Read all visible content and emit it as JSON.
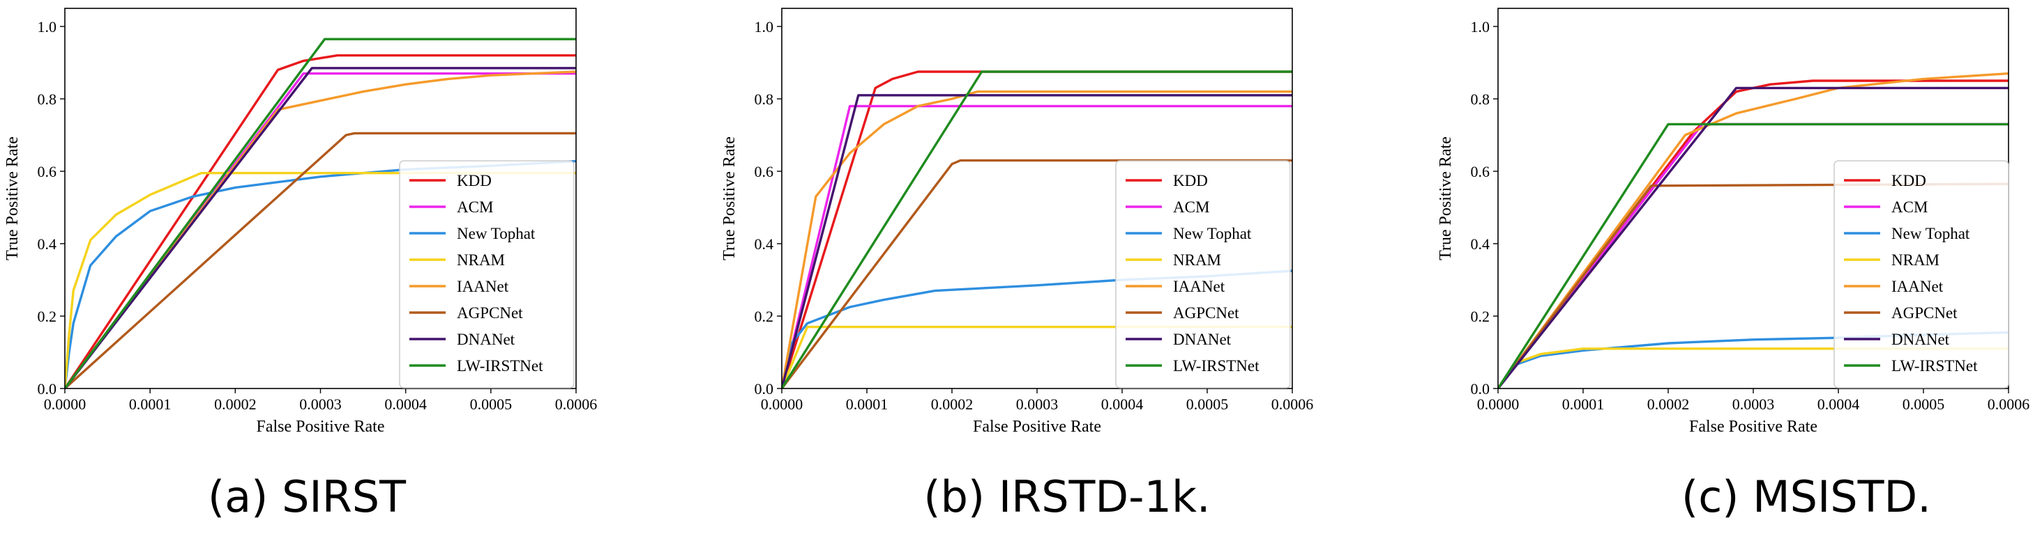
{
  "figure": {
    "colors": {
      "KDD": "#e8191c",
      "ACM": "#ec25ec",
      "New Tophat": "#2e8fe0",
      "NRAM": "#f5d31c",
      "IAANet": "#f59a2a",
      "AGPCNet": "#b25a1c",
      "DNANet": "#43146e",
      "LW-IRSTNet": "#1f8c1f"
    }
  },
  "chart_data": [
    {
      "type": "line",
      "caption": "(a) SIRST",
      "xlabel": "False Positive Rate",
      "ylabel": "True Positive Rate",
      "xlim": [
        0,
        0.0006
      ],
      "ylim": [
        0,
        1.05
      ],
      "xticks": [
        "0.0000",
        "0.0001",
        "0.0002",
        "0.0003",
        "0.0004",
        "0.0005",
        "0.0006"
      ],
      "yticks": [
        "0.0",
        "0.2",
        "0.4",
        "0.6",
        "0.8",
        "1.0"
      ],
      "legend_position": "center-right",
      "series": [
        {
          "name": "KDD",
          "points": [
            [
              0,
              0
            ],
            [
              0.00025,
              0.88
            ],
            [
              0.00028,
              0.905
            ],
            [
              0.00032,
              0.92
            ],
            [
              0.0006,
              0.92
            ]
          ]
        },
        {
          "name": "ACM",
          "points": [
            [
              0,
              0
            ],
            [
              0.00028,
              0.87
            ],
            [
              0.0006,
              0.87
            ]
          ]
        },
        {
          "name": "New Tophat",
          "points": [
            [
              0,
              0
            ],
            [
              5e-06,
              0.1
            ],
            [
              1e-05,
              0.18
            ],
            [
              3e-05,
              0.34
            ],
            [
              6e-05,
              0.42
            ],
            [
              0.0001,
              0.49
            ],
            [
              0.00015,
              0.53
            ],
            [
              0.0002,
              0.555
            ],
            [
              0.0003,
              0.585
            ],
            [
              0.0004,
              0.605
            ],
            [
              0.0005,
              0.615
            ],
            [
              0.0006,
              0.628
            ]
          ]
        },
        {
          "name": "NRAM",
          "points": [
            [
              0,
              0
            ],
            [
              5e-06,
              0.15
            ],
            [
              1e-05,
              0.27
            ],
            [
              3e-05,
              0.41
            ],
            [
              6e-05,
              0.48
            ],
            [
              0.0001,
              0.535
            ],
            [
              0.00016,
              0.595
            ],
            [
              0.0006,
              0.595
            ]
          ]
        },
        {
          "name": "IAANet",
          "points": [
            [
              0,
              0
            ],
            [
              0.00025,
              0.77
            ],
            [
              0.0003,
              0.795
            ],
            [
              0.00035,
              0.82
            ],
            [
              0.0004,
              0.84
            ],
            [
              0.00045,
              0.855
            ],
            [
              0.0005,
              0.865
            ],
            [
              0.0006,
              0.875
            ]
          ]
        },
        {
          "name": "AGPCNet",
          "points": [
            [
              0,
              0
            ],
            [
              0.00033,
              0.7
            ],
            [
              0.00034,
              0.705
            ],
            [
              0.0006,
              0.705
            ]
          ]
        },
        {
          "name": "DNANet",
          "points": [
            [
              0,
              0
            ],
            [
              0.00029,
              0.885
            ],
            [
              0.0006,
              0.885
            ]
          ]
        },
        {
          "name": "LW-IRSTNet",
          "points": [
            [
              0,
              0
            ],
            [
              0.000305,
              0.965
            ],
            [
              0.0006,
              0.965
            ]
          ]
        }
      ]
    },
    {
      "type": "line",
      "caption": "(b) IRSTD-1k.",
      "xlabel": "False Positive Rate",
      "ylabel": "True Positive Rate",
      "xlim": [
        0,
        0.0006
      ],
      "ylim": [
        0,
        1.05
      ],
      "xticks": [
        "0.0000",
        "0.0001",
        "0.0002",
        "0.0003",
        "0.0004",
        "0.0005",
        "0.0006"
      ],
      "yticks": [
        "0.0",
        "0.2",
        "0.4",
        "0.6",
        "0.8",
        "1.0"
      ],
      "legend_position": "lower-right",
      "series": [
        {
          "name": "KDD",
          "points": [
            [
              0,
              0
            ],
            [
              0.00011,
              0.83
            ],
            [
              0.00013,
              0.855
            ],
            [
              0.00016,
              0.875
            ],
            [
              0.0006,
              0.875
            ]
          ]
        },
        {
          "name": "ACM",
          "points": [
            [
              0,
              0
            ],
            [
              8e-05,
              0.78
            ],
            [
              0.0006,
              0.78
            ]
          ]
        },
        {
          "name": "New Tophat",
          "points": [
            [
              0,
              0
            ],
            [
              1e-05,
              0.12
            ],
            [
              3e-05,
              0.18
            ],
            [
              8e-05,
              0.225
            ],
            [
              0.00012,
              0.245
            ],
            [
              0.00018,
              0.27
            ],
            [
              0.0003,
              0.285
            ],
            [
              0.0004,
              0.3
            ],
            [
              0.0005,
              0.31
            ],
            [
              0.0006,
              0.325
            ]
          ]
        },
        {
          "name": "NRAM",
          "points": [
            [
              0,
              0
            ],
            [
              3e-05,
              0.17
            ],
            [
              0.0006,
              0.17
            ]
          ]
        },
        {
          "name": "IAANet",
          "points": [
            [
              0,
              0
            ],
            [
              4e-05,
              0.53
            ],
            [
              8e-05,
              0.65
            ],
            [
              0.00012,
              0.73
            ],
            [
              0.00016,
              0.78
            ],
            [
              0.0002,
              0.8
            ],
            [
              0.00023,
              0.82
            ],
            [
              0.0006,
              0.82
            ]
          ]
        },
        {
          "name": "AGPCNet",
          "points": [
            [
              0,
              0
            ],
            [
              0.0002,
              0.62
            ],
            [
              0.00021,
              0.63
            ],
            [
              0.0006,
              0.63
            ]
          ]
        },
        {
          "name": "DNANet",
          "points": [
            [
              0,
              0
            ],
            [
              9e-05,
              0.81
            ],
            [
              0.0006,
              0.81
            ]
          ]
        },
        {
          "name": "LW-IRSTNet",
          "points": [
            [
              0,
              0
            ],
            [
              0.000235,
              0.875
            ],
            [
              0.0006,
              0.875
            ]
          ]
        }
      ]
    },
    {
      "type": "line",
      "caption": "(c) MSISTD.",
      "xlabel": "False Positive Rate",
      "ylabel": "True Positive Rate",
      "xlim": [
        0,
        0.0006
      ],
      "ylim": [
        0,
        1.05
      ],
      "xticks": [
        "0.0000",
        "0.0001",
        "0.0002",
        "0.0003",
        "0.0004",
        "0.0005",
        "0.0006"
      ],
      "yticks": [
        "0.0",
        "0.2",
        "0.4",
        "0.6",
        "0.8",
        "1.0"
      ],
      "legend_position": "lower-right",
      "series": [
        {
          "name": "KDD",
          "points": [
            [
              0,
              0
            ],
            [
              0.00023,
              0.71
            ],
            [
              0.00028,
              0.82
            ],
            [
              0.00032,
              0.84
            ],
            [
              0.00037,
              0.85
            ],
            [
              0.0006,
              0.85
            ]
          ]
        },
        {
          "name": "ACM",
          "points": [
            [
              0,
              0
            ],
            [
              0.00024,
              0.73
            ],
            [
              0.0006,
              0.73
            ]
          ]
        },
        {
          "name": "New Tophat",
          "points": [
            [
              0,
              0
            ],
            [
              2e-05,
              0.065
            ],
            [
              5e-05,
              0.09
            ],
            [
              0.0001,
              0.105
            ],
            [
              0.00015,
              0.115
            ],
            [
              0.0002,
              0.125
            ],
            [
              0.0003,
              0.135
            ],
            [
              0.0004,
              0.14
            ],
            [
              0.0005,
              0.148
            ],
            [
              0.0006,
              0.155
            ]
          ]
        },
        {
          "name": "NRAM",
          "points": [
            [
              0,
              0
            ],
            [
              2e-05,
              0.07
            ],
            [
              5e-05,
              0.095
            ],
            [
              0.0001,
              0.11
            ],
            [
              0.0006,
              0.11
            ]
          ]
        },
        {
          "name": "IAANet",
          "points": [
            [
              0,
              0
            ],
            [
              0.00022,
              0.7
            ],
            [
              0.00028,
              0.76
            ],
            [
              0.00035,
              0.8
            ],
            [
              0.0004,
              0.83
            ],
            [
              0.0005,
              0.855
            ],
            [
              0.0006,
              0.87
            ]
          ]
        },
        {
          "name": "AGPCNet",
          "points": [
            [
              0,
              0
            ],
            [
              0.00018,
              0.56
            ],
            [
              0.0006,
              0.565
            ]
          ]
        },
        {
          "name": "DNANet",
          "points": [
            [
              0,
              0
            ],
            [
              0.00028,
              0.83
            ],
            [
              0.0006,
              0.83
            ]
          ]
        },
        {
          "name": "LW-IRSTNet",
          "points": [
            [
              0,
              0
            ],
            [
              0.0002,
              0.73
            ],
            [
              0.0006,
              0.73
            ]
          ]
        }
      ]
    }
  ]
}
